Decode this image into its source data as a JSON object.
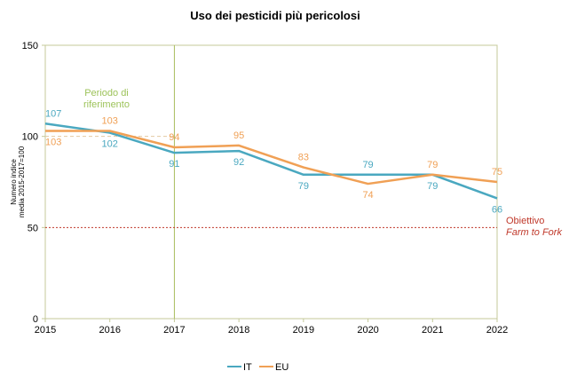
{
  "chart_data": {
    "type": "line",
    "title": "Uso dei pesticidi più pericolosi",
    "ylabel_lines": [
      "Numero indice",
      "media 2015-2017=100"
    ],
    "x": [
      2015,
      2016,
      2017,
      2018,
      2019,
      2020,
      2021,
      2022
    ],
    "ylim": [
      0,
      150
    ],
    "yticks": [
      0,
      50,
      100,
      150
    ],
    "series": [
      {
        "name": "IT",
        "color": "#4aa8c0",
        "values": [
          107,
          102,
          91,
          92,
          79,
          79,
          79,
          66
        ]
      },
      {
        "name": "EU",
        "color": "#f0a055",
        "values": [
          103,
          103,
          94,
          95,
          83,
          74,
          79,
          75
        ]
      }
    ],
    "reference_period": {
      "label_lines": [
        "Periodo di",
        "riferimento"
      ],
      "color": "#9dc35a",
      "baseline": 100
    },
    "target": {
      "value": 50,
      "label_lines": [
        "Obiettivo",
        "Farm to Fork"
      ],
      "color": "#c0392b"
    },
    "grid": "none",
    "legend_position": "bottom-center"
  }
}
